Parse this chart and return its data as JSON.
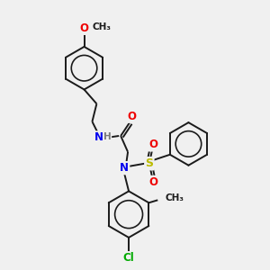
{
  "background_color": "#f0f0f0",
  "bond_color": "#1a1a1a",
  "atom_colors": {
    "N": "#0000ee",
    "O": "#ee0000",
    "S": "#bbbb00",
    "Cl": "#00aa00",
    "H": "#7a7a7a"
  },
  "figsize": [
    3.0,
    3.0
  ],
  "dpi": 100,
  "lw": 1.4
}
